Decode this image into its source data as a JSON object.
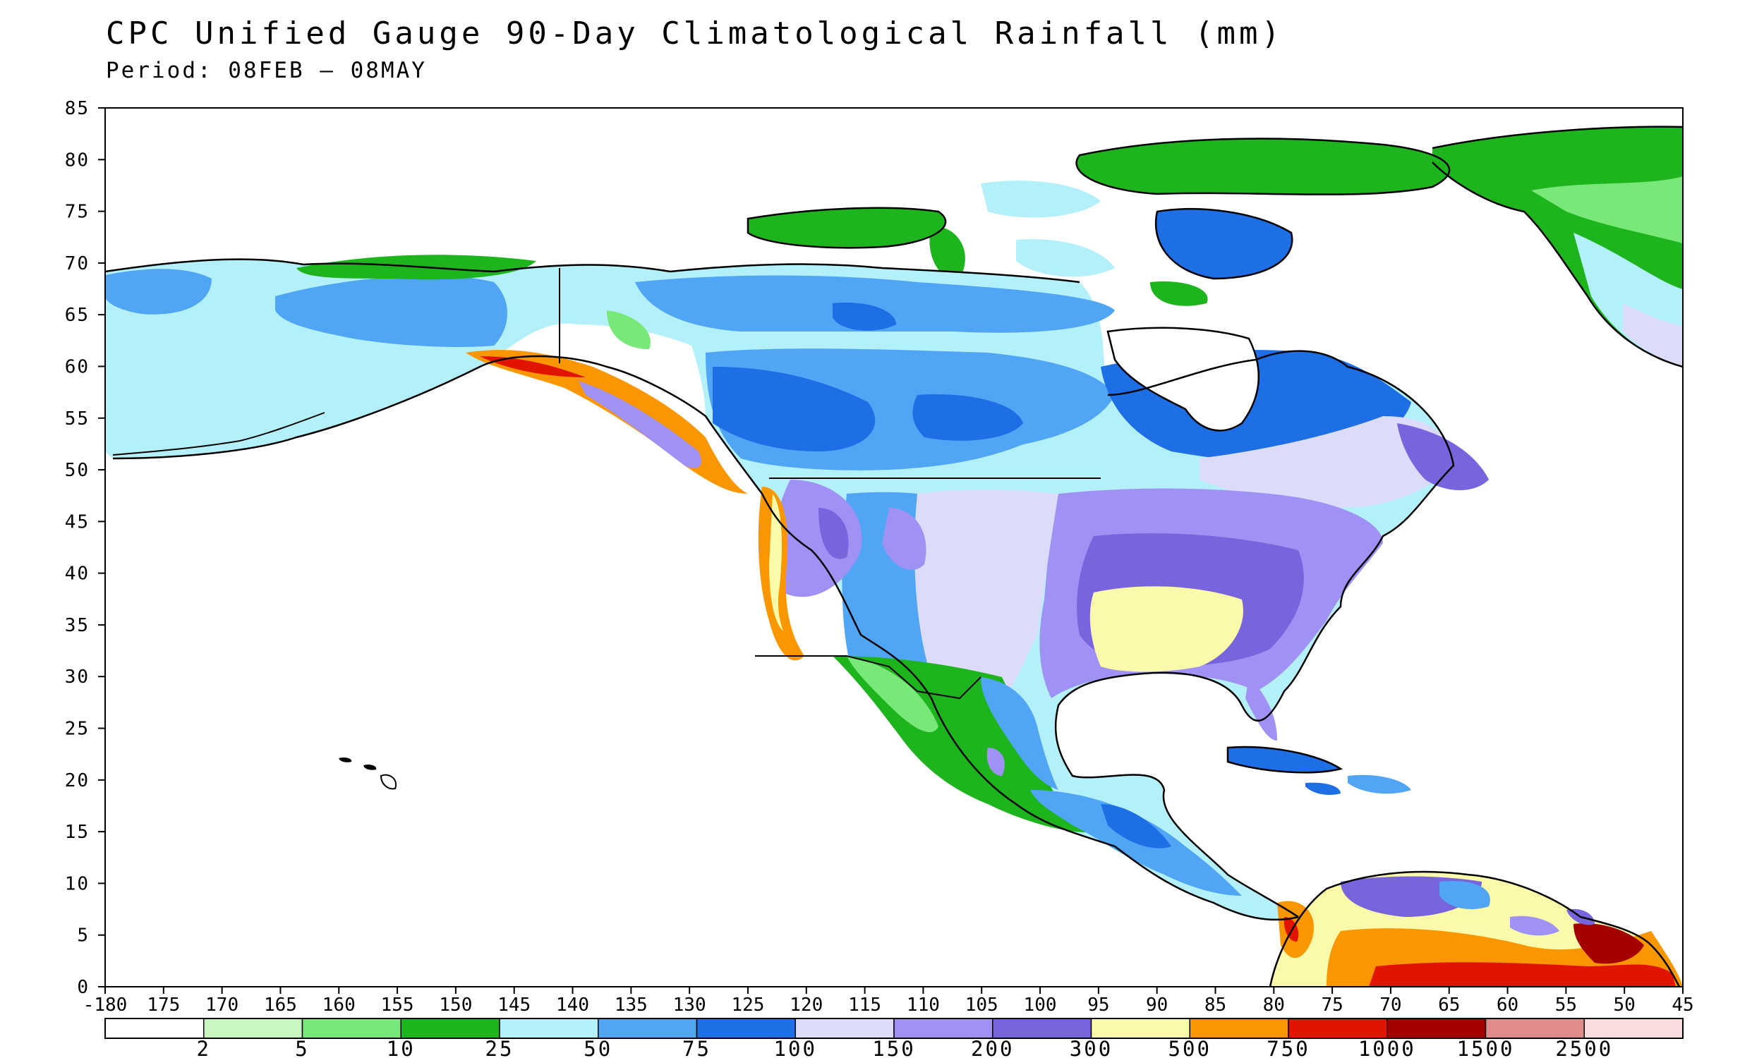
{
  "title": "CPC Unified Gauge 90-Day Climatological Rainfall (mm)",
  "subtitle": "Period: 08FEB – 08MAY",
  "map": {
    "lat_range": [
      0,
      85
    ],
    "lon_range": [
      -180,
      -45
    ],
    "y_ticks": [
      "85",
      "80",
      "75",
      "70",
      "65",
      "60",
      "55",
      "50",
      "45",
      "40",
      "35",
      "30",
      "25",
      "20",
      "15",
      "10",
      "5",
      "0"
    ],
    "x_ticks": [
      "-180",
      "175",
      "170",
      "165",
      "160",
      "155",
      "150",
      "145",
      "140",
      "135",
      "130",
      "125",
      "120",
      "115",
      "110",
      "105",
      "100",
      "95",
      "90",
      "85",
      "80",
      "75",
      "70",
      "65",
      "60",
      "55",
      "50",
      "45"
    ]
  },
  "colorbar": {
    "colors": [
      "#ffffff",
      "#c8f8c0",
      "#78e878",
      "#1eb41e",
      "#b4f0fa",
      "#50a5f5",
      "#1e6ee6",
      "#dcdcfa",
      "#a092f5",
      "#7864dc",
      "#fafaaa",
      "#fa9600",
      "#e11400",
      "#a50000",
      "#e18c8c",
      "#fadcdc"
    ],
    "labels": [
      "2",
      "5",
      "10",
      "25",
      "50",
      "75",
      "100",
      "150",
      "200",
      "300",
      "500",
      "750",
      "1000",
      "1500",
      "2500"
    ]
  }
}
